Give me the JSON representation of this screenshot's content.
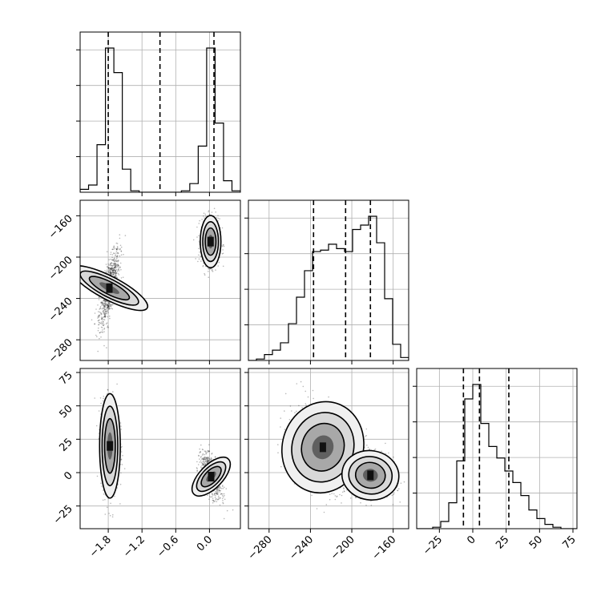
{
  "chart_data": [
    {
      "type": "histogram",
      "panel": "x-marginal",
      "xlim": [
        -2.3,
        0.55
      ],
      "bins": [
        -2.3,
        -2.15,
        -2.0,
        -1.85,
        -1.7,
        -1.55,
        -1.4,
        -1.25,
        -1.1,
        -0.95,
        -0.8,
        -0.65,
        -0.5,
        -0.35,
        -0.2,
        -0.05,
        0.1,
        0.25,
        0.4,
        0.55
      ],
      "counts": [
        0.02,
        0.05,
        0.33,
        1.0,
        0.83,
        0.16,
        0.01,
        0,
        0,
        0,
        0,
        0,
        0.01,
        0.06,
        0.32,
        1.0,
        0.48,
        0.08,
        0.01
      ],
      "quantiles": [
        -1.8,
        -0.88,
        0.08
      ],
      "grid": true
    },
    {
      "type": "histogram",
      "panel": "y-marginal",
      "xlim": [
        -300,
        -145
      ],
      "bins": [
        -300,
        -292.25,
        -284.5,
        -276.75,
        -269,
        -261.25,
        -253.5,
        -245.75,
        -238,
        -230.25,
        -222.5,
        -214.75,
        -207,
        -199.25,
        -191.5,
        -183.75,
        -176,
        -168.25,
        -160.5,
        -152.75,
        -145
      ],
      "counts": [
        0,
        0.01,
        0.04,
        0.07,
        0.12,
        0.25,
        0.43,
        0.61,
        0.74,
        0.75,
        0.79,
        0.76,
        0.74,
        0.89,
        0.92,
        0.98,
        0.8,
        0.42,
        0.11,
        0.02
      ],
      "quantiles": [
        -237,
        -206,
        -182
      ],
      "xticks": [
        -280,
        -240,
        -200,
        -160
      ],
      "grid": true
    },
    {
      "type": "histogram",
      "panel": "z-marginal",
      "xlim": [
        -42,
        78
      ],
      "bins": [
        -42,
        -36,
        -30,
        -24,
        -18,
        -12,
        -6,
        0,
        6,
        12,
        18,
        24,
        30,
        36,
        42,
        48,
        54,
        60,
        66,
        72,
        78
      ],
      "counts": [
        0,
        0,
        0.01,
        0.05,
        0.18,
        0.47,
        0.9,
        1.0,
        0.73,
        0.57,
        0.49,
        0.4,
        0.32,
        0.23,
        0.13,
        0.07,
        0.03,
        0.01,
        0,
        0
      ],
      "quantiles": [
        -7,
        5,
        27
      ],
      "xticks": [
        -25,
        0,
        25,
        50,
        75
      ],
      "grid": true
    },
    {
      "type": "scatter",
      "panel": "x-y",
      "xlim": [
        -2.3,
        0.55
      ],
      "ylim": [
        -300,
        -145
      ],
      "yticks": [
        -160,
        -200,
        -240,
        -280
      ],
      "clusters": [
        {
          "cx": -1.78,
          "cy": -230,
          "sx": 0.09,
          "sy": 18,
          "rho": 0.72
        },
        {
          "cx": 0.02,
          "cy": -185,
          "sx": 0.08,
          "sy": 11,
          "rho": 0.0
        }
      ],
      "grid": true
    },
    {
      "type": "scatter",
      "panel": "x-z",
      "xlim": [
        -2.3,
        0.55
      ],
      "ylim": [
        -42,
        78
      ],
      "xticks": [
        -1.8,
        -1.2,
        -0.6,
        0.0
      ],
      "yticks": [
        75,
        50,
        25,
        0,
        -25
      ],
      "clusters": [
        {
          "cx": -1.77,
          "cy": 20,
          "sx": 0.08,
          "sy": 17,
          "rho": 0.0
        },
        {
          "cx": 0.03,
          "cy": -3,
          "sx": 0.09,
          "sy": 8,
          "rho": -0.55
        }
      ],
      "grid": true
    },
    {
      "type": "scatter",
      "panel": "y-z",
      "xlim": [
        -300,
        -145
      ],
      "ylim": [
        -42,
        78
      ],
      "xticks": [
        -280,
        -240,
        -200,
        -160
      ],
      "clusters": [
        {
          "cx": -228,
          "cy": 19,
          "sx": 17,
          "sy": 15,
          "rho": -0.3
        },
        {
          "cx": -182,
          "cy": -2,
          "sx": 12,
          "sy": 8,
          "rho": -0.2
        }
      ],
      "grid": true
    }
  ]
}
